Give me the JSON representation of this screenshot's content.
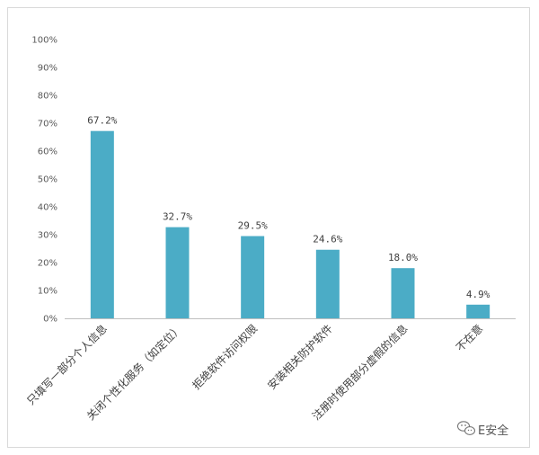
{
  "chart_data": {
    "type": "bar",
    "title": "",
    "xlabel": "",
    "ylabel": "",
    "ylim": [
      0,
      100
    ],
    "y_ticks": [
      "0%",
      "10%",
      "20%",
      "30%",
      "40%",
      "50%",
      "60%",
      "70%",
      "80%",
      "90%",
      "100%"
    ],
    "categories": [
      "只填写一部分个人信息",
      "关闭个性化服务（如定位）",
      "拒绝软件访问权限",
      "安装相关防护软件",
      "注册时使用部分虚假的信息",
      "不在意"
    ],
    "values": [
      67.2,
      32.7,
      29.5,
      24.6,
      18.0,
      4.9
    ],
    "data_labels": [
      "67.2%",
      "32.7%",
      "29.5%",
      "24.6%",
      "18.0%",
      "4.9%"
    ],
    "bar_color": "#4bacc6",
    "grid": false,
    "legend": "none"
  },
  "watermark": {
    "icon": "wechat-icon",
    "text": "E安全"
  }
}
